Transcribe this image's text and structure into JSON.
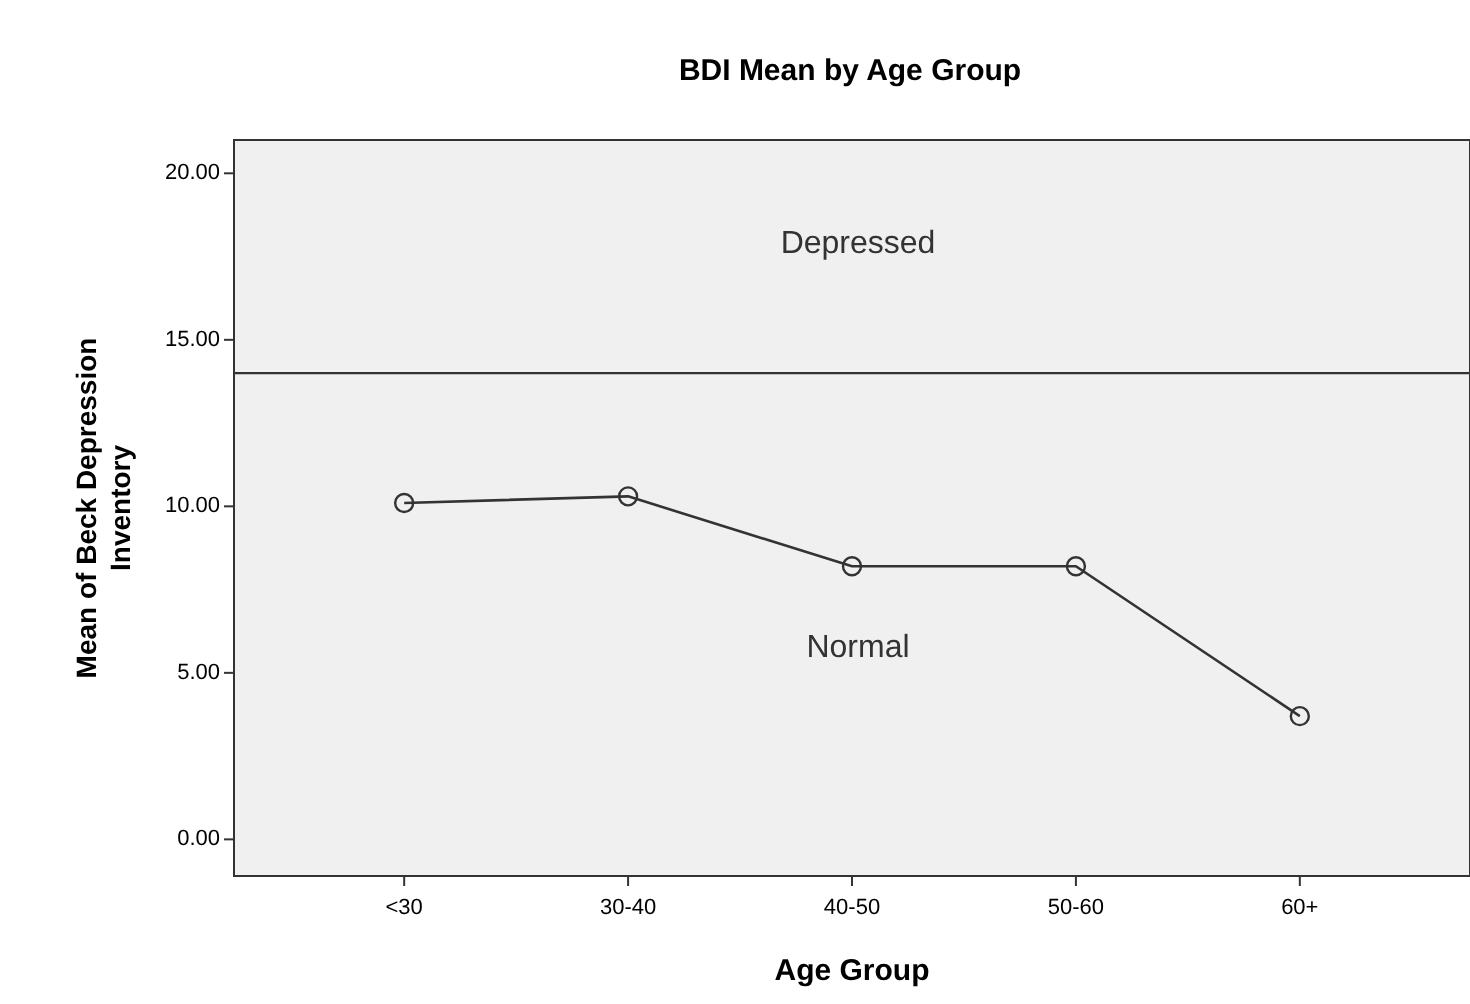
{
  "chart_data": {
    "type": "line",
    "title": "BDI Mean by Age Group",
    "xlabel": "Age Group",
    "ylabel": "Mean of Beck Depression Inventory",
    "categories": [
      "<30",
      "30-40",
      "40-50",
      "50-60",
      "60+"
    ],
    "series": [
      {
        "color": "#333333",
        "values": [
          10.1,
          10.3,
          8.2,
          8.2,
          3.7
        ]
      }
    ],
    "marker": "circle",
    "line_style": "solid",
    "ylim": [
      -1.1,
      21
    ],
    "yticks": [
      {
        "value": 0,
        "label": "0.00"
      },
      {
        "value": 5,
        "label": "5.00"
      },
      {
        "value": 10,
        "label": "10.00"
      },
      {
        "value": 15,
        "label": "15.00"
      },
      {
        "value": 20,
        "label": "20.00"
      }
    ],
    "ref_lines": [
      {
        "axis": "y",
        "value": 14,
        "color": "#333333"
      }
    ],
    "annotations": [
      "Depressed",
      "Normal"
    ],
    "grid": false
  }
}
